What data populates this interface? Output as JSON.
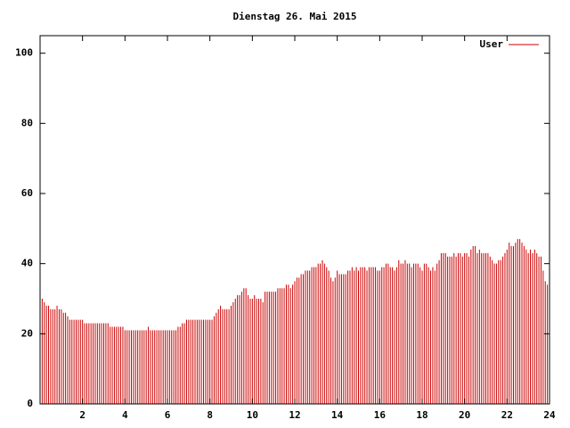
{
  "chart_data": {
    "type": "impulse",
    "title": "Dienstag 26. Mai 2015",
    "x": [
      0.0,
      0.1,
      0.2,
      0.3,
      0.4,
      0.5,
      0.6,
      0.7,
      0.8,
      0.9,
      1.0,
      1.1,
      1.2,
      1.3,
      1.4,
      1.5,
      1.6,
      1.7,
      1.8,
      1.9,
      2.0,
      2.1,
      2.2,
      2.3,
      2.4,
      2.5,
      2.6,
      2.7,
      2.8,
      2.9,
      3.0,
      3.1,
      3.2,
      3.3,
      3.4,
      3.5,
      3.6,
      3.7,
      3.8,
      3.9,
      4.0,
      4.1,
      4.2,
      4.3,
      4.4,
      4.5,
      4.6,
      4.7,
      4.8,
      4.9,
      5.0,
      5.1,
      5.2,
      5.3,
      5.4,
      5.5,
      5.6,
      5.7,
      5.8,
      5.9,
      6.0,
      6.1,
      6.2,
      6.3,
      6.4,
      6.5,
      6.6,
      6.7,
      6.8,
      6.9,
      7.0,
      7.1,
      7.2,
      7.3,
      7.4,
      7.5,
      7.6,
      7.7,
      7.8,
      7.9,
      8.0,
      8.1,
      8.2,
      8.3,
      8.4,
      8.5,
      8.6,
      8.7,
      8.8,
      8.9,
      9.0,
      9.1,
      9.2,
      9.3,
      9.4,
      9.5,
      9.6,
      9.7,
      9.8,
      9.9,
      10.0,
      10.1,
      10.2,
      10.3,
      10.4,
      10.5,
      10.6,
      10.7,
      10.8,
      10.9,
      11.0,
      11.1,
      11.2,
      11.3,
      11.4,
      11.5,
      11.6,
      11.7,
      11.8,
      11.9,
      12.0,
      12.1,
      12.2,
      12.3,
      12.4,
      12.5,
      12.6,
      12.7,
      12.8,
      12.9,
      13.0,
      13.1,
      13.2,
      13.3,
      13.4,
      13.5,
      13.6,
      13.7,
      13.8,
      13.9,
      14.0,
      14.1,
      14.2,
      14.3,
      14.4,
      14.5,
      14.6,
      14.7,
      14.8,
      14.9,
      15.0,
      15.1,
      15.2,
      15.3,
      15.4,
      15.5,
      15.6,
      15.7,
      15.8,
      15.9,
      16.0,
      16.1,
      16.2,
      16.3,
      16.4,
      16.5,
      16.6,
      16.7,
      16.8,
      16.9,
      17.0,
      17.1,
      17.2,
      17.3,
      17.4,
      17.5,
      17.6,
      17.7,
      17.8,
      17.9,
      18.0,
      18.1,
      18.2,
      18.3,
      18.4,
      18.5,
      18.6,
      18.7,
      18.8,
      18.9,
      19.0,
      19.1,
      19.2,
      19.3,
      19.4,
      19.5,
      19.6,
      19.7,
      19.8,
      19.9,
      20.0,
      20.1,
      20.2,
      20.3,
      20.4,
      20.5,
      20.6,
      20.7,
      20.8,
      20.9,
      21.0,
      21.1,
      21.2,
      21.3,
      21.4,
      21.5,
      21.6,
      21.7,
      21.8,
      21.9,
      22.0,
      22.1,
      22.2,
      22.3,
      22.4,
      22.5,
      22.6,
      22.7,
      22.8,
      22.9,
      23.0,
      23.1,
      23.2,
      23.3,
      23.4,
      23.5,
      23.6,
      23.7,
      23.8,
      23.9
    ],
    "series": [
      {
        "name": "User",
        "color": "#cc0000",
        "values": [
          30,
          30,
          29,
          28,
          28,
          27,
          27,
          27,
          28,
          27,
          27,
          26,
          26,
          25,
          24,
          24,
          24,
          24,
          24,
          24,
          24,
          23,
          23,
          23,
          23,
          23,
          23,
          23,
          23,
          23,
          23,
          23,
          23,
          22,
          22,
          22,
          22,
          22,
          22,
          22,
          21,
          21,
          21,
          21,
          21,
          21,
          21,
          21,
          21,
          21,
          21,
          22,
          21,
          21,
          21,
          21,
          21,
          21,
          21,
          21,
          21,
          21,
          21,
          21,
          21,
          22,
          22,
          23,
          23,
          24,
          24,
          24,
          24,
          24,
          24,
          24,
          24,
          24,
          24,
          24,
          24,
          24,
          25,
          26,
          27,
          28,
          27,
          27,
          27,
          27,
          28,
          29,
          30,
          31,
          31,
          32,
          33,
          33,
          31,
          30,
          30,
          31,
          30,
          30,
          30,
          29,
          32,
          32,
          32,
          32,
          32,
          32,
          33,
          33,
          33,
          33,
          34,
          34,
          33,
          34,
          35,
          36,
          36,
          37,
          37,
          38,
          38,
          38,
          39,
          39,
          39,
          40,
          40,
          41,
          40,
          39,
          38,
          36,
          35,
          36,
          38,
          37,
          37,
          37,
          37,
          38,
          38,
          39,
          38,
          39,
          38,
          39,
          39,
          39,
          38,
          39,
          39,
          39,
          39,
          38,
          38,
          39,
          39,
          40,
          40,
          39,
          39,
          38,
          39,
          41,
          40,
          40,
          41,
          40,
          40,
          39,
          40,
          40,
          40,
          39,
          38,
          40,
          40,
          39,
          38,
          39,
          38,
          40,
          41,
          43,
          43,
          43,
          42,
          42,
          42,
          43,
          42,
          43,
          43,
          42,
          43,
          43,
          42,
          44,
          45,
          45,
          43,
          44,
          43,
          43,
          43,
          43,
          42,
          41,
          40,
          40,
          41,
          41,
          42,
          43,
          44,
          46,
          45,
          45,
          46,
          47,
          47,
          46,
          45,
          44,
          43,
          44,
          43,
          44,
          43,
          42,
          42,
          38,
          35,
          34
        ]
      }
    ],
    "xlim": [
      0,
      24
    ],
    "xticks": [
      2,
      4,
      6,
      8,
      10,
      12,
      14,
      16,
      18,
      20,
      22,
      24
    ],
    "ylim": [
      0,
      105
    ],
    "yticks": [
      0,
      20,
      40,
      60,
      80,
      100
    ],
    "legend": "upper right"
  }
}
